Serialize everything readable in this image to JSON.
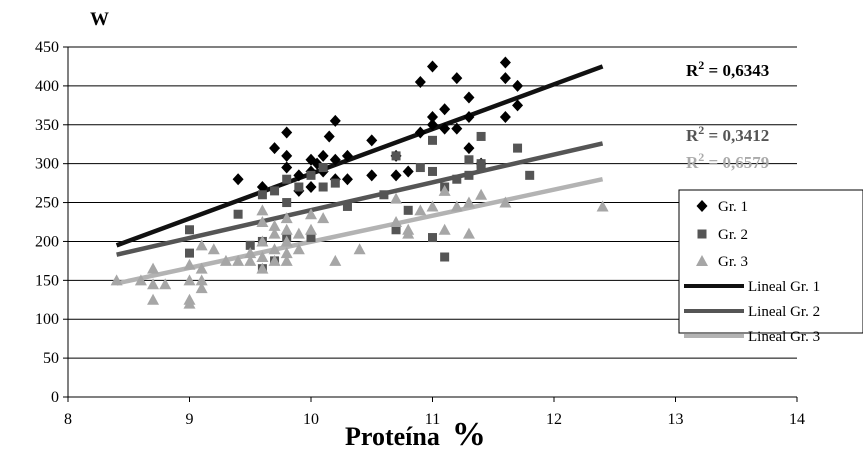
{
  "chart_data": {
    "type": "scatter",
    "xlabel": "Proteína",
    "xlabel_unit": "%",
    "ylabel": "W",
    "xlim": [
      8,
      14
    ],
    "ylim": [
      0,
      450
    ],
    "x_ticks": [
      "8",
      "9",
      "10",
      "11",
      "12",
      "13",
      "14"
    ],
    "y_ticks": [
      "0",
      "50",
      "100",
      "150",
      "200",
      "250",
      "300",
      "350",
      "400",
      "450"
    ],
    "grid": "horizontal",
    "legend_position": "right",
    "r2_labels": [
      {
        "text": "R",
        "sup": "2",
        "value": " = 0,6343",
        "color": "#000000"
      },
      {
        "text": "R",
        "sup": "2",
        "value": " = 0,3412",
        "color": "#555555"
      },
      {
        "text": "R",
        "sup": "2",
        "value": " = 0,6579",
        "color": "#aaaaaa"
      }
    ],
    "series": [
      {
        "name": "Gr. 1",
        "marker": "diamond",
        "color": "#000000",
        "points": [
          [
            9.4,
            280
          ],
          [
            9.6,
            270
          ],
          [
            9.7,
            320
          ],
          [
            9.8,
            340
          ],
          [
            9.8,
            310
          ],
          [
            9.8,
            295
          ],
          [
            9.9,
            285
          ],
          [
            9.9,
            265
          ],
          [
            10.0,
            305
          ],
          [
            10.0,
            290
          ],
          [
            10.0,
            270
          ],
          [
            10.05,
            300
          ],
          [
            10.1,
            310
          ],
          [
            10.1,
            290
          ],
          [
            10.15,
            335
          ],
          [
            10.2,
            305
          ],
          [
            10.2,
            355
          ],
          [
            10.2,
            280
          ],
          [
            10.3,
            310
          ],
          [
            10.3,
            280
          ],
          [
            10.5,
            330
          ],
          [
            10.5,
            285
          ],
          [
            10.7,
            310
          ],
          [
            10.7,
            285
          ],
          [
            10.8,
            290
          ],
          [
            10.9,
            340
          ],
          [
            10.9,
            405
          ],
          [
            11.0,
            425
          ],
          [
            11.0,
            350
          ],
          [
            11.0,
            360
          ],
          [
            11.1,
            345
          ],
          [
            11.1,
            370
          ],
          [
            11.2,
            410
          ],
          [
            11.2,
            345
          ],
          [
            11.3,
            385
          ],
          [
            11.3,
            360
          ],
          [
            11.3,
            320
          ],
          [
            11.4,
            300
          ],
          [
            11.6,
            430
          ],
          [
            11.6,
            410
          ],
          [
            11.6,
            360
          ],
          [
            11.7,
            400
          ],
          [
            11.7,
            375
          ]
        ]
      },
      {
        "name": "Gr. 2",
        "marker": "square",
        "color": "#555555",
        "points": [
          [
            9.0,
            215
          ],
          [
            9.0,
            185
          ],
          [
            9.4,
            235
          ],
          [
            9.5,
            195
          ],
          [
            9.6,
            260
          ],
          [
            9.6,
            200
          ],
          [
            9.6,
            165
          ],
          [
            9.7,
            265
          ],
          [
            9.7,
            175
          ],
          [
            9.8,
            280
          ],
          [
            9.8,
            250
          ],
          [
            9.8,
            205
          ],
          [
            9.9,
            270
          ],
          [
            10.0,
            285
          ],
          [
            10.0,
            205
          ],
          [
            10.1,
            295
          ],
          [
            10.1,
            270
          ],
          [
            10.2,
            275
          ],
          [
            10.3,
            245
          ],
          [
            10.6,
            260
          ],
          [
            10.7,
            310
          ],
          [
            10.7,
            215
          ],
          [
            10.8,
            240
          ],
          [
            10.9,
            295
          ],
          [
            11.0,
            330
          ],
          [
            11.0,
            290
          ],
          [
            11.0,
            205
          ],
          [
            11.1,
            180
          ],
          [
            11.1,
            270
          ],
          [
            11.2,
            280
          ],
          [
            11.3,
            305
          ],
          [
            11.3,
            285
          ],
          [
            11.4,
            300
          ],
          [
            11.4,
            295
          ],
          [
            11.4,
            335
          ],
          [
            11.7,
            320
          ],
          [
            11.8,
            285
          ]
        ]
      },
      {
        "name": "Gr. 3",
        "marker": "triangle",
        "color": "#a6a6a6",
        "points": [
          [
            8.4,
            150
          ],
          [
            8.6,
            150
          ],
          [
            8.7,
            165
          ],
          [
            8.7,
            145
          ],
          [
            8.7,
            125
          ],
          [
            8.8,
            145
          ],
          [
            9.0,
            170
          ],
          [
            9.0,
            150
          ],
          [
            9.0,
            125
          ],
          [
            9.0,
            120
          ],
          [
            9.1,
            195
          ],
          [
            9.1,
            165
          ],
          [
            9.1,
            150
          ],
          [
            9.1,
            140
          ],
          [
            9.2,
            190
          ],
          [
            9.3,
            175
          ],
          [
            9.4,
            175
          ],
          [
            9.5,
            185
          ],
          [
            9.5,
            175
          ],
          [
            9.6,
            240
          ],
          [
            9.6,
            225
          ],
          [
            9.6,
            200
          ],
          [
            9.6,
            180
          ],
          [
            9.6,
            165
          ],
          [
            9.7,
            220
          ],
          [
            9.7,
            210
          ],
          [
            9.7,
            190
          ],
          [
            9.7,
            175
          ],
          [
            9.8,
            230
          ],
          [
            9.8,
            215
          ],
          [
            9.8,
            200
          ],
          [
            9.8,
            185
          ],
          [
            9.8,
            175
          ],
          [
            9.9,
            210
          ],
          [
            9.9,
            190
          ],
          [
            10.0,
            235
          ],
          [
            10.0,
            215
          ],
          [
            10.1,
            230
          ],
          [
            10.2,
            175
          ],
          [
            10.4,
            190
          ],
          [
            10.7,
            255
          ],
          [
            10.7,
            225
          ],
          [
            10.8,
            215
          ],
          [
            10.8,
            210
          ],
          [
            10.9,
            240
          ],
          [
            11.0,
            245
          ],
          [
            11.1,
            265
          ],
          [
            11.1,
            215
          ],
          [
            11.2,
            245
          ],
          [
            11.3,
            250
          ],
          [
            11.3,
            210
          ],
          [
            11.4,
            260
          ],
          [
            11.6,
            250
          ],
          [
            12.4,
            245
          ]
        ]
      }
    ],
    "trendlines": [
      {
        "name": "Lineal Gr. 1",
        "x": [
          8.4,
          12.4
        ],
        "y": [
          195,
          425
        ],
        "color": "#111111"
      },
      {
        "name": "Lineal Gr. 2",
        "x": [
          8.4,
          12.4
        ],
        "y": [
          183,
          326
        ],
        "color": "#555555"
      },
      {
        "name": "Lineal Gr. 3",
        "x": [
          8.4,
          12.4
        ],
        "y": [
          146,
          280
        ],
        "color": "#b3b3b3"
      }
    ]
  }
}
